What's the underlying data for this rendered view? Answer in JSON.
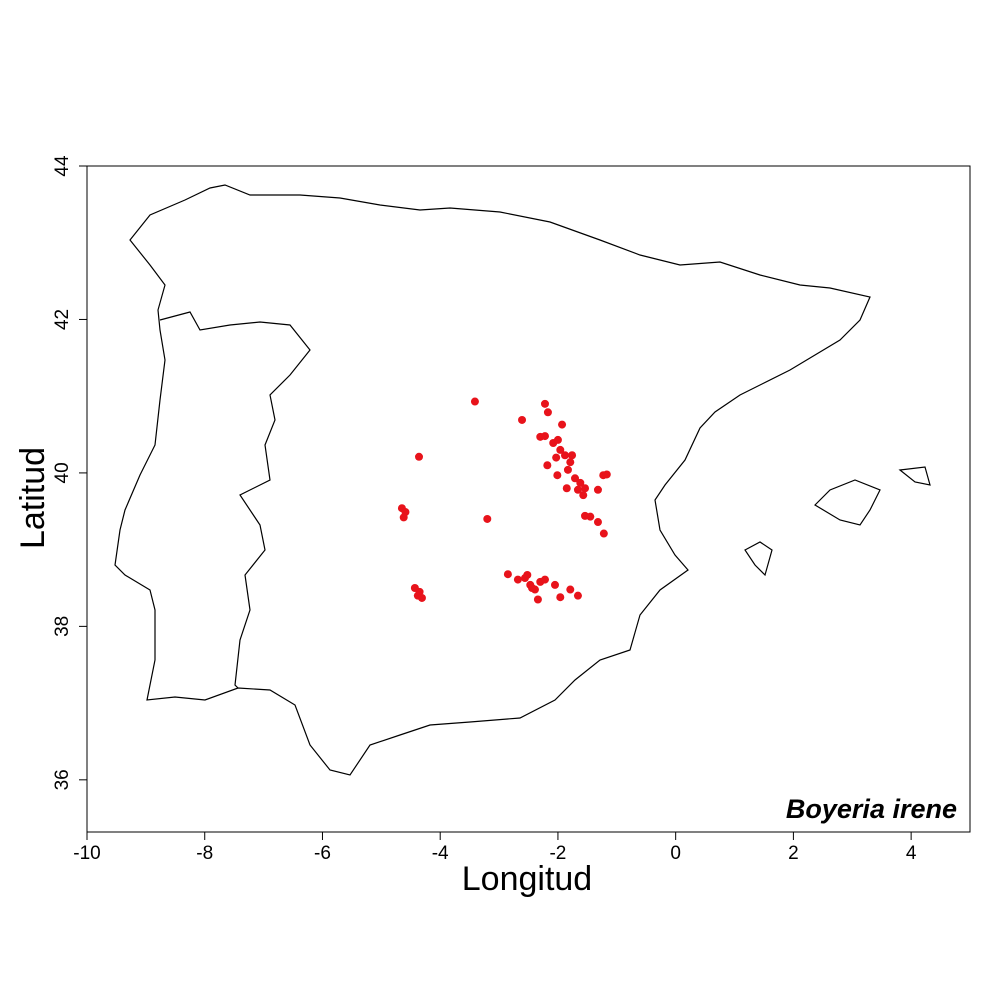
{
  "chart_data": {
    "type": "scatter",
    "xlabel": "Longitud",
    "ylabel": "Latitud",
    "annotation": "Boyeria irene",
    "xlim": [
      -10,
      5
    ],
    "ylim": [
      35.32,
      44
    ],
    "xticks": [
      -10,
      -8,
      -6,
      -4,
      -2,
      0,
      2,
      4
    ],
    "yticks": [
      36,
      38,
      40,
      42,
      44
    ],
    "color": "#e8131b",
    "x": [
      -3.41,
      -4.36,
      -4.65,
      -4.59,
      -4.62,
      -3.2,
      -4.43,
      -4.35,
      -4.38,
      -4.31,
      -2.85,
      -2.68,
      -2.56,
      -2.47,
      -2.52,
      -2.39,
      -2.3,
      -2.22,
      -2.34,
      -2.44,
      -2.05,
      -1.96,
      -1.79,
      -1.66,
      -2.61,
      -2.22,
      -2.17,
      -2.3,
      -2.22,
      -2.08,
      -2.0,
      -1.93,
      -1.96,
      -2.18,
      -2.03,
      -1.88,
      -1.76,
      -1.79,
      -1.83,
      -2.01,
      -1.71,
      -1.62,
      -1.66,
      -1.57,
      -1.54,
      -1.85,
      -1.32,
      -1.23,
      -1.17,
      -1.45,
      -1.32,
      -1.22,
      -1.54
    ],
    "values": [
      40.93,
      40.21,
      39.54,
      39.49,
      39.42,
      39.4,
      38.5,
      38.45,
      38.4,
      38.37,
      38.68,
      38.61,
      38.63,
      38.54,
      38.67,
      38.48,
      38.58,
      38.61,
      38.35,
      38.5,
      38.54,
      38.38,
      38.48,
      38.4,
      40.69,
      40.9,
      40.79,
      40.47,
      40.48,
      40.39,
      40.43,
      40.63,
      40.3,
      40.1,
      40.2,
      40.23,
      40.23,
      40.14,
      40.04,
      39.97,
      39.93,
      39.87,
      39.78,
      39.71,
      39.8,
      39.8,
      39.78,
      39.97,
      39.98,
      39.43,
      39.36,
      39.21,
      39.44
    ]
  }
}
